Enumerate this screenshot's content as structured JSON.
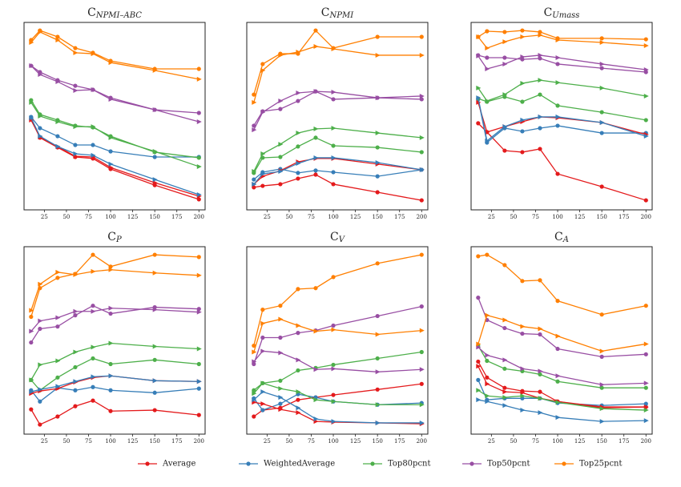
{
  "chart_data": [
    {
      "type": "line",
      "title": "C",
      "title_sub": "NPMI–ABC",
      "x": [
        10,
        20,
        40,
        60,
        80,
        100,
        150,
        200
      ],
      "xlim": [
        2,
        207
      ],
      "ylim": [
        0,
        100
      ],
      "xticks": [
        25,
        50,
        75,
        100,
        125,
        150,
        175,
        200
      ],
      "series": [
        {
          "name": "Average",
          "color": "#e41a1c",
          "marker": "o",
          "values": [
            48.3,
            38.5,
            33.3,
            28.2,
            27.4,
            21.8,
            13.2,
            5.6
          ]
        },
        {
          "name": "WeightedAverage",
          "color": "#377eb8",
          "marker": "o",
          "values": [
            49.6,
            43.6,
            39.3,
            34.6,
            34.6,
            31.2,
            28.2,
            28.2
          ]
        },
        {
          "name": "Top80pcnt",
          "color": "#4daf4a",
          "marker": "o",
          "values": [
            58.5,
            50.9,
            47.9,
            44.9,
            44,
            39.3,
            30.8,
            27.8
          ]
        },
        {
          "name": "Top50pcnt",
          "color": "#984ea3",
          "marker": "o",
          "values": [
            76.9,
            73.5,
            69.2,
            66.2,
            64.1,
            59.8,
            53.4,
            51.7
          ]
        },
        {
          "name": "Top25pcnt",
          "color": "#ff7f00",
          "marker": "o",
          "values": [
            90.6,
            95.7,
            92.3,
            86.3,
            83.8,
            79.5,
            75.2,
            75.2
          ]
        },
        {
          "name": "Average",
          "color": "#e41a1c",
          "marker": "^",
          "values": [
            47.9,
            38.9,
            33.8,
            28.6,
            28.2,
            22.6,
            14.5,
            7.3
          ]
        },
        {
          "name": "WeightedAverage",
          "color": "#377eb8",
          "marker": "^",
          "values": [
            49.1,
            39.3,
            33.8,
            29.9,
            29.1,
            24.4,
            16.2,
            8.1
          ]
        },
        {
          "name": "Top80pcnt",
          "color": "#4daf4a",
          "marker": "^",
          "values": [
            57.3,
            50,
            47,
            44.4,
            44.4,
            38.5,
            31.2,
            23.1
          ]
        },
        {
          "name": "Top50pcnt",
          "color": "#984ea3",
          "marker": "^",
          "values": [
            76.9,
            72.2,
            68.4,
            63.7,
            64.1,
            59,
            53.4,
            47
          ]
        },
        {
          "name": "Top25pcnt",
          "color": "#ff7f00",
          "marker": "^",
          "values": [
            89.3,
            94.9,
            90.6,
            83.8,
            83.3,
            78.6,
            74.4,
            69.7
          ]
        }
      ]
    },
    {
      "type": "line",
      "title": "C",
      "title_sub": "NPMI",
      "x": [
        10,
        20,
        40,
        60,
        80,
        100,
        150,
        200
      ],
      "xlim": [
        2,
        207
      ],
      "ylim": [
        0,
        100
      ],
      "xticks": [
        25,
        50,
        75,
        100,
        125,
        150,
        175,
        200
      ],
      "series": [
        {
          "name": "Average",
          "color": "#e41a1c",
          "marker": "o",
          "values": [
            12,
            12.8,
            13.7,
            16.7,
            18.8,
            13.7,
            9.4,
            5.1
          ]
        },
        {
          "name": "WeightedAverage",
          "color": "#377eb8",
          "marker": "o",
          "values": [
            16.2,
            20.1,
            21.8,
            19.7,
            21,
            20.1,
            17.9,
            21.4
          ]
        },
        {
          "name": "Top80pcnt",
          "color": "#4daf4a",
          "marker": "o",
          "values": [
            19.7,
            27.8,
            28.2,
            33.8,
            38.5,
            34.2,
            33.3,
            30.8
          ]
        },
        {
          "name": "Top50pcnt",
          "color": "#984ea3",
          "marker": "o",
          "values": [
            44.9,
            52.6,
            53.8,
            58.1,
            63.2,
            59,
            59.8,
            59
          ]
        },
        {
          "name": "Top25pcnt",
          "color": "#ff7f00",
          "marker": "o",
          "values": [
            61.5,
            77.8,
            83.3,
            83.3,
            95.7,
            86.3,
            92.3,
            92.3
          ]
        },
        {
          "name": "Average",
          "color": "#e41a1c",
          "marker": "^",
          "values": [
            13.7,
            17.9,
            20.9,
            25.6,
            27.4,
            27.4,
            24.4,
            21.4
          ]
        },
        {
          "name": "WeightedAverage",
          "color": "#377eb8",
          "marker": "^",
          "values": [
            13.7,
            19.2,
            20.5,
            24.8,
            27.8,
            27.8,
            25.2,
            21.4
          ]
        },
        {
          "name": "Top80pcnt",
          "color": "#4daf4a",
          "marker": "^",
          "values": [
            20.5,
            29.9,
            35,
            41,
            43.2,
            43.6,
            41,
            38.5
          ]
        },
        {
          "name": "Top50pcnt",
          "color": "#984ea3",
          "marker": "^",
          "values": [
            42.7,
            52.1,
            58.1,
            62.4,
            63.2,
            62.8,
            59.8,
            60.7
          ]
        },
        {
          "name": "Top25pcnt",
          "color": "#ff7f00",
          "marker": "^",
          "values": [
            57.3,
            74.4,
            82.5,
            84.2,
            87.2,
            85.9,
            82.5,
            82.5
          ]
        }
      ]
    },
    {
      "type": "line",
      "title": "C",
      "title_sub": "Umass",
      "x": [
        10,
        20,
        40,
        60,
        80,
        100,
        150,
        200
      ],
      "xlim": [
        2,
        207
      ],
      "ylim": [
        0,
        100
      ],
      "xticks": [
        25,
        50,
        75,
        100,
        125,
        150,
        175,
        200
      ],
      "series": [
        {
          "name": "Average",
          "color": "#e41a1c",
          "marker": "o",
          "values": [
            46.2,
            41.5,
            31.6,
            30.8,
            32.5,
            19.2,
            12.4,
            5.1
          ]
        },
        {
          "name": "WeightedAverage",
          "color": "#377eb8",
          "marker": "o",
          "values": [
            59,
            35.9,
            43.6,
            41.9,
            43.6,
            44.9,
            41,
            41
          ]
        },
        {
          "name": "Top80pcnt",
          "color": "#4daf4a",
          "marker": "o",
          "values": [
            59.4,
            57.7,
            60.3,
            57.7,
            61.5,
            55.6,
            52.1,
            47.9
          ]
        },
        {
          "name": "Top50pcnt",
          "color": "#984ea3",
          "marker": "o",
          "values": [
            82.5,
            81.2,
            81.2,
            80.3,
            80.8,
            77.8,
            75.6,
            73.5
          ]
        },
        {
          "name": "Top25pcnt",
          "color": "#ff7f00",
          "marker": "o",
          "values": [
            92.3,
            95.3,
            94.9,
            95.7,
            94.9,
            91.5,
            91.5,
            91
          ]
        },
        {
          "name": "Average",
          "color": "#e41a1c",
          "marker": "^",
          "values": [
            57.3,
            41.5,
            44.4,
            47,
            49.6,
            49.1,
            46.6,
            40.2
          ]
        },
        {
          "name": "WeightedAverage",
          "color": "#377eb8",
          "marker": "^",
          "values": [
            59.8,
            36.8,
            44.4,
            47.9,
            49.6,
            49.6,
            46.6,
            39.3
          ]
        },
        {
          "name": "Top80pcnt",
          "color": "#4daf4a",
          "marker": "^",
          "values": [
            65,
            58.1,
            61.5,
            67.5,
            69.2,
            67.9,
            65,
            60.7
          ]
        },
        {
          "name": "Top50pcnt",
          "color": "#984ea3",
          "marker": "^",
          "values": [
            82.1,
            75.2,
            77.8,
            81.6,
            82.5,
            81.2,
            77.8,
            74.8
          ]
        },
        {
          "name": "Top25pcnt",
          "color": "#ff7f00",
          "marker": "^",
          "values": [
            92.3,
            86.3,
            89.7,
            92.3,
            93.2,
            90.6,
            89.3,
            87.6
          ]
        }
      ]
    },
    {
      "type": "line",
      "title": "C",
      "title_sub": "P",
      "x": [
        10,
        20,
        40,
        60,
        80,
        100,
        150,
        200
      ],
      "xlim": [
        2,
        207
      ],
      "ylim": [
        0,
        100
      ],
      "xticks": [
        25,
        50,
        75,
        100,
        125,
        150,
        175,
        200
      ],
      "series": [
        {
          "name": "Average",
          "color": "#e41a1c",
          "marker": "o",
          "values": [
            13.2,
            5.1,
            9.4,
            14.9,
            17.9,
            12.3,
            12.8,
            10.2
          ]
        },
        {
          "name": "WeightedAverage",
          "color": "#377eb8",
          "marker": "o",
          "values": [
            23.4,
            17.4,
            24.7,
            23.4,
            25.1,
            23.4,
            22.1,
            24.3
          ]
        },
        {
          "name": "Top80pcnt",
          "color": "#4daf4a",
          "marker": "o",
          "values": [
            28.9,
            23.4,
            30.2,
            35.7,
            40.4,
            37.4,
            39.6,
            37.4
          ]
        },
        {
          "name": "Top50pcnt",
          "color": "#984ea3",
          "marker": "o",
          "values": [
            48.9,
            56.2,
            57.4,
            63.4,
            68.5,
            64.3,
            67.7,
            66.8
          ]
        },
        {
          "name": "Top25pcnt",
          "color": "#ff7f00",
          "marker": "o",
          "values": [
            62.6,
            77.9,
            83.4,
            85.5,
            95.7,
            89.4,
            95.7,
            94.5
          ]
        },
        {
          "name": "Average",
          "color": "#e41a1c",
          "marker": "^",
          "values": [
            21.7,
            23,
            24.3,
            27.7,
            30.2,
            31.1,
            28.5,
            28.1
          ]
        },
        {
          "name": "WeightedAverage",
          "color": "#377eb8",
          "marker": "^",
          "values": [
            22.6,
            23.8,
            25.5,
            28.1,
            30.6,
            31.1,
            28.5,
            28.1
          ]
        },
        {
          "name": "Top80pcnt",
          "color": "#4daf4a",
          "marker": "^",
          "values": [
            28.9,
            37,
            39.1,
            43.8,
            46.4,
            48.5,
            46.8,
            45.5
          ]
        },
        {
          "name": "Top50pcnt",
          "color": "#984ea3",
          "marker": "^",
          "values": [
            54.9,
            60.4,
            62.1,
            65.5,
            65.5,
            67.2,
            66.4,
            65.1
          ]
        },
        {
          "name": "Top25pcnt",
          "color": "#ff7f00",
          "marker": "^",
          "values": [
            66,
            80,
            86.4,
            85.1,
            86.8,
            87.7,
            86,
            84.7
          ]
        }
      ]
    },
    {
      "type": "line",
      "title": "C",
      "title_sub": "V",
      "x": [
        10,
        20,
        40,
        60,
        80,
        100,
        150,
        200
      ],
      "xlim": [
        2,
        207
      ],
      "ylim": [
        0,
        100
      ],
      "xticks": [
        25,
        50,
        75,
        100,
        125,
        150,
        175,
        200
      ],
      "series": [
        {
          "name": "Average",
          "color": "#e41a1c",
          "marker": "o",
          "values": [
            9.4,
            12.8,
            14,
            18.3,
            19.6,
            20.9,
            23.8,
            26.8
          ]
        },
        {
          "name": "WeightedAverage",
          "color": "#377eb8",
          "marker": "o",
          "values": [
            19.1,
            12.8,
            16.2,
            21.3,
            19.6,
            17.4,
            15.7,
            16.6
          ]
        },
        {
          "name": "Top80pcnt",
          "color": "#4daf4a",
          "marker": "o",
          "values": [
            23.4,
            27.2,
            28.5,
            34,
            35.3,
            37,
            40.4,
            43.8
          ]
        },
        {
          "name": "Top50pcnt",
          "color": "#984ea3",
          "marker": "o",
          "values": [
            37.4,
            51.5,
            51.5,
            54,
            55.3,
            57.9,
            63,
            68.1
          ]
        },
        {
          "name": "Top25pcnt",
          "color": "#ff7f00",
          "marker": "o",
          "values": [
            47.2,
            66.4,
            68.5,
            77.4,
            77.9,
            83.8,
            91.1,
            95.7
          ]
        },
        {
          "name": "Average",
          "color": "#e41a1c",
          "marker": "^",
          "values": [
            17,
            16.2,
            13.2,
            11.5,
            6.8,
            6.4,
            6,
            5.5
          ]
        },
        {
          "name": "WeightedAverage",
          "color": "#377eb8",
          "marker": "^",
          "values": [
            18.3,
            22.6,
            19.6,
            14,
            8.1,
            6.8,
            6,
            6
          ]
        },
        {
          "name": "Top80pcnt",
          "color": "#4daf4a",
          "marker": "^",
          "values": [
            21.7,
            27.2,
            24.3,
            22.6,
            18.3,
            17.4,
            15.7,
            15.7
          ]
        },
        {
          "name": "Top50pcnt",
          "color": "#984ea3",
          "marker": "^",
          "values": [
            38.7,
            44.3,
            43.4,
            39.6,
            34.5,
            34.9,
            33.2,
            34.5
          ]
        },
        {
          "name": "Top25pcnt",
          "color": "#ff7f00",
          "marker": "^",
          "values": [
            43.8,
            59.1,
            61.3,
            57.9,
            54.9,
            55.7,
            53.2,
            55.3
          ]
        }
      ]
    },
    {
      "type": "line",
      "title": "C",
      "title_sub": "A",
      "x": [
        10,
        20,
        40,
        60,
        80,
        100,
        150,
        200
      ],
      "xlim": [
        2,
        207
      ],
      "ylim": [
        0,
        100
      ],
      "xticks": [
        25,
        50,
        75,
        100,
        125,
        150,
        175,
        200
      ],
      "series": [
        {
          "name": "Average",
          "color": "#e41a1c",
          "marker": "o",
          "values": [
            38.7,
            30.2,
            24.7,
            23,
            22.6,
            17.4,
            14,
            14.5
          ]
        },
        {
          "name": "WeightedAverage",
          "color": "#377eb8",
          "marker": "o",
          "values": [
            28.9,
            18.3,
            19.1,
            19.1,
            19.1,
            16.6,
            15.3,
            16.2
          ]
        },
        {
          "name": "Top80pcnt",
          "color": "#4daf4a",
          "marker": "o",
          "values": [
            47.2,
            39.1,
            34.9,
            33.6,
            31.9,
            28.1,
            24.7,
            24.7
          ]
        },
        {
          "name": "Top50pcnt",
          "color": "#984ea3",
          "marker": "o",
          "values": [
            72.8,
            60.9,
            56.6,
            53.6,
            53.2,
            45.5,
            41.3,
            42.6
          ]
        },
        {
          "name": "Top25pcnt",
          "color": "#ff7f00",
          "marker": "o",
          "values": [
            94.9,
            95.7,
            90.2,
            81.7,
            82.1,
            71.1,
            63.8,
            68.5
          ]
        },
        {
          "name": "Average",
          "color": "#e41a1c",
          "marker": "^",
          "values": [
            36.2,
            26.8,
            22.6,
            22.1,
            19.1,
            17.4,
            14.5,
            14.5
          ]
        },
        {
          "name": "WeightedAverage",
          "color": "#377eb8",
          "marker": "^",
          "values": [
            18.3,
            17.4,
            15.3,
            12.8,
            11.5,
            8.9,
            6.8,
            7.2
          ]
        },
        {
          "name": "Top80pcnt",
          "color": "#4daf4a",
          "marker": "^",
          "values": [
            23.4,
            20.4,
            19.6,
            20.4,
            19.1,
            17,
            13.6,
            12.8
          ]
        },
        {
          "name": "Top50pcnt",
          "color": "#984ea3",
          "marker": "^",
          "values": [
            46.4,
            42.1,
            39.6,
            34.9,
            33.6,
            31.1,
            26.4,
            27.2
          ]
        },
        {
          "name": "Top25pcnt",
          "color": "#ff7f00",
          "marker": "^",
          "values": [
            48.1,
            63.4,
            60.9,
            57.4,
            56.2,
            52.3,
            44.3,
            48.1
          ]
        }
      ]
    }
  ]
}
